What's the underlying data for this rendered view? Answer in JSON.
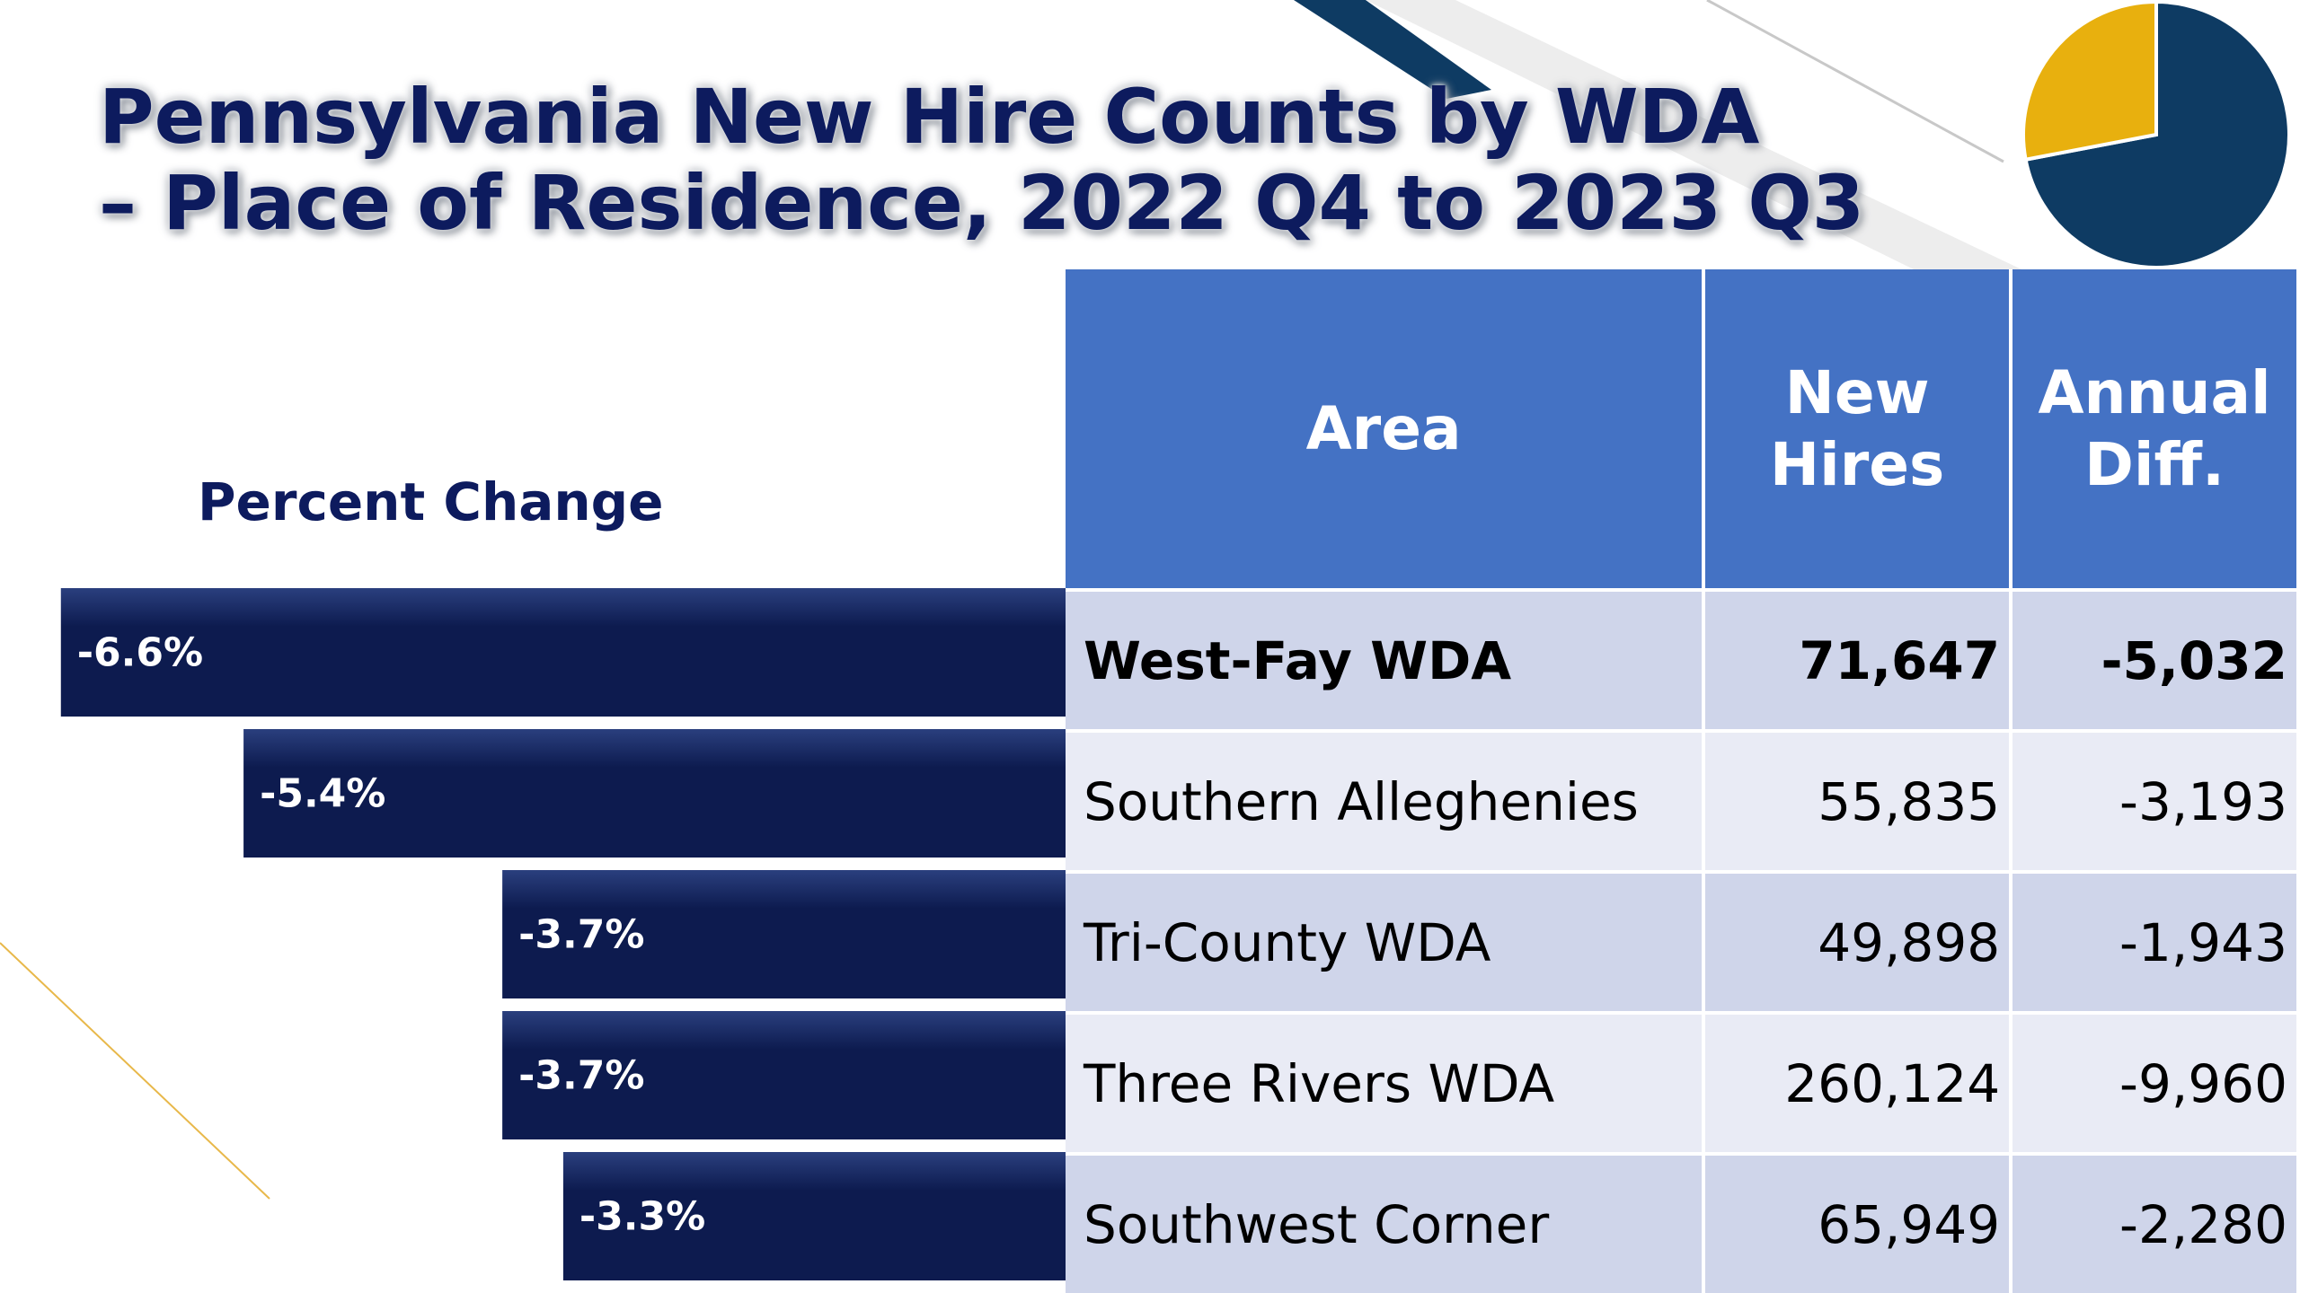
{
  "title_line1": "Pennsylvania New Hire Counts by WDA",
  "title_line2": "– Place of Residence, 2022 Q4 to 2023 Q3",
  "percent_change_heading": "Percent Change",
  "table": {
    "headers": {
      "area": "Area",
      "new_hires_line1": "New",
      "new_hires_line2": "Hires",
      "annual_diff_line1": "Annual",
      "annual_diff_line2": "Diff."
    },
    "rows": [
      {
        "area": "West-Fay WDA",
        "new_hires": "71,647",
        "annual_diff": "-5,032",
        "bold": true
      },
      {
        "area": "Southern Alleghenies",
        "new_hires": "55,835",
        "annual_diff": "-3,193",
        "bold": false
      },
      {
        "area": "Tri-County WDA",
        "new_hires": "49,898",
        "annual_diff": "-1,943",
        "bold": false
      },
      {
        "area": "Three Rivers WDA",
        "new_hires": "260,124",
        "annual_diff": "-9,960",
        "bold": false
      },
      {
        "area": "Southwest Corner",
        "new_hires": "65,949",
        "annual_diff": "-2,280",
        "bold": false
      }
    ]
  },
  "chart_data": [
    {
      "type": "bar",
      "orientation": "horizontal",
      "title": "Percent Change",
      "categories": [
        "West-Fay WDA",
        "Southern Alleghenies",
        "Tri-County WDA",
        "Three Rivers WDA",
        "Southwest Corner"
      ],
      "values": [
        -6.6,
        -5.4,
        -3.7,
        -3.7,
        -3.3
      ],
      "labels": [
        "-6.6%",
        "-5.4%",
        "-3.7%",
        "-3.7%",
        "-3.3%"
      ],
      "xlim": [
        -7.0,
        0
      ],
      "grid": false
    },
    {
      "type": "pie",
      "values": [
        72,
        28
      ]
    }
  ],
  "colors": {
    "bar_dark": "#0d1b4f",
    "bar_light": "#2a3f7e",
    "header_blue": "#4472c4",
    "row_odd": "#cfd5ea",
    "row_even": "#e9ebf5",
    "title_navy": "#0d1b5e",
    "pie_navy": "#0e3b63",
    "pie_gold": "#e8b00e",
    "accent_gold": "#e8b84a"
  }
}
